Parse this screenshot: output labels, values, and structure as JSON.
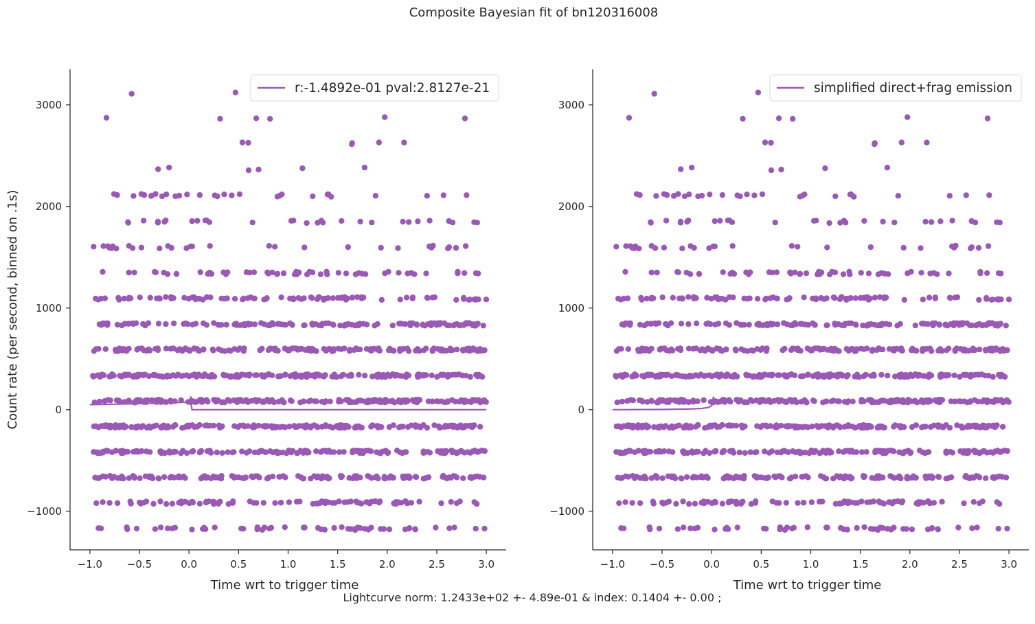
{
  "figure": {
    "suptitle": "Composite Bayesian fit of bn120316008",
    "footer": "Lightcurve norm: 1.2433e+02 +- 4.89e-01 & index: 0.1404 +- 0.00 ;",
    "point_color": "#9b59b6",
    "line_color": "#9b59b6"
  },
  "chart_data": [
    {
      "type": "scatter",
      "panel": "left",
      "title": "",
      "xlabel": "Time wrt to trigger time",
      "ylabel": "Count rate (per second, binned on .1s)",
      "xlim": [
        -1.2,
        3.2
      ],
      "ylim": [
        -1380,
        3350
      ],
      "xticks": [
        -1.0,
        -0.5,
        0.0,
        0.5,
        1.0,
        1.5,
        2.0,
        2.5,
        3.0
      ],
      "xtick_labels": [
        "−1.0",
        "−0.5",
        "0.0",
        "0.5",
        "1.0",
        "1.5",
        "2.0",
        "2.5",
        "3.0"
      ],
      "yticks": [
        -1000,
        0,
        1000,
        2000,
        3000
      ],
      "ytick_labels": [
        "−1000",
        "0",
        "1000",
        "2000",
        "3000"
      ],
      "grid": false,
      "legend": {
        "position": "top-right",
        "entries": [
          "r:-1.4892e-01  pval:2.8127e-21"
        ]
      },
      "scatter_levels": [
        -1170,
        -915,
        -665,
        -415,
        -165,
        85,
        335,
        590,
        840,
        1095,
        1345,
        1600,
        1850,
        2110,
        2370,
        2620,
        2870,
        3120
      ],
      "scatter_x_range": [
        -0.97,
        3.0
      ],
      "fit_line": {
        "name": "r:-1.4892e-01  pval:2.8127e-21",
        "x": [
          -1.0,
          -0.75,
          -0.5,
          -0.25,
          0.0,
          0.02,
          0.02,
          0.03,
          3.0
        ],
        "y": [
          50,
          54,
          59,
          66,
          75,
          130,
          70,
          0,
          0
        ]
      }
    },
    {
      "type": "scatter",
      "panel": "right",
      "title": "",
      "xlabel": "Time wrt to trigger time",
      "ylabel": "",
      "xlim": [
        -1.2,
        3.2
      ],
      "ylim": [
        -1380,
        3350
      ],
      "xticks": [
        -1.0,
        -0.5,
        0.0,
        0.5,
        1.0,
        1.5,
        2.0,
        2.5,
        3.0
      ],
      "xtick_labels": [
        "−1.0",
        "−0.5",
        "0.0",
        "0.5",
        "1.0",
        "1.5",
        "2.0",
        "2.5",
        "3.0"
      ],
      "yticks": [
        -1000,
        0,
        1000,
        2000,
        3000
      ],
      "ytick_labels": [
        "−1000",
        "0",
        "1000",
        "2000",
        "3000"
      ],
      "grid": false,
      "legend": {
        "position": "top-right",
        "entries": [
          "simplified direct+frag emission"
        ]
      },
      "scatter_levels": [
        -1170,
        -915,
        -665,
        -415,
        -165,
        85,
        335,
        590,
        840,
        1095,
        1345,
        1600,
        1850,
        2110,
        2370,
        2620,
        2870,
        3120
      ],
      "scatter_x_range": [
        -0.97,
        3.0
      ],
      "fit_line": {
        "name": "simplified direct+frag emission",
        "x": [
          -1.0,
          -0.5,
          -0.25,
          -0.1,
          -0.03,
          0.0,
          0.01,
          0.015,
          0.02
        ],
        "y": [
          0,
          2,
          6,
          12,
          22,
          40,
          70,
          110,
          130
        ]
      }
    }
  ]
}
